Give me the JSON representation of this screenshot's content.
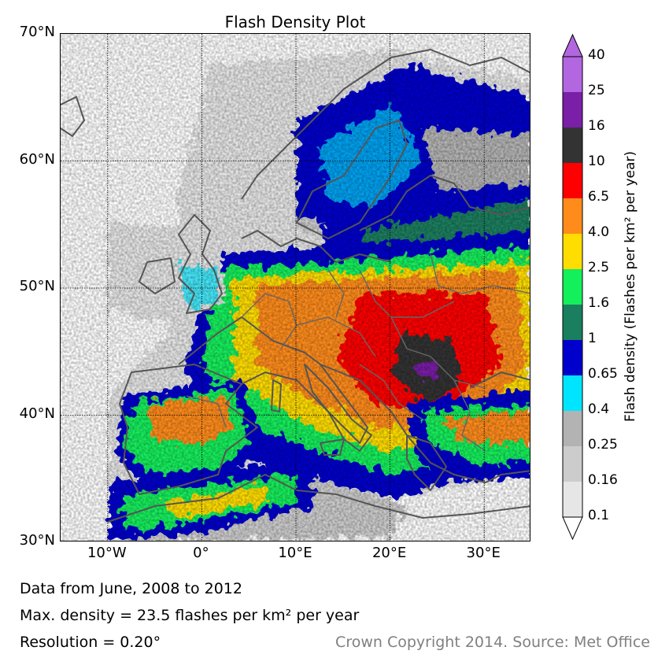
{
  "title": "Flash Density Plot",
  "axes": {
    "lat_labels": [
      "70°N",
      "60°N",
      "50°N",
      "40°N",
      "30°N"
    ],
    "lon_labels": [
      "10°W",
      "0°",
      "10°E",
      "20°E",
      "30°E"
    ],
    "lat_values": [
      70,
      60,
      50,
      40,
      30
    ],
    "lon_values": [
      -10,
      0,
      10,
      20,
      30
    ],
    "extent": {
      "lon": [
        -15,
        35
      ],
      "lat": [
        30,
        70
      ]
    },
    "gridlines": true
  },
  "colorbar": {
    "title": "Flash density (Flashes per km² per year)",
    "levels": [
      "40",
      "25",
      "16",
      "10",
      "6.5",
      "4.0",
      "2.5",
      "1.6",
      "1",
      "0.65",
      "0.4",
      "0.25",
      "0.16",
      "0.1"
    ],
    "colors": [
      "#b266e0",
      "#7a1fa8",
      "#333333",
      "#ff0000",
      "#ff8c1a",
      "#ffdd00",
      "#14ef5c",
      "#1a7f5e",
      "#0000cc",
      "#00e5ff",
      "#b3b3b3",
      "#cccccc",
      "#e6e6e6"
    ],
    "extend_max_color": "#b266e0",
    "extend_min_color": "#ffffff"
  },
  "footer": {
    "line1": "Data from June, 2008 to 2012",
    "line2": "Max. density = 23.5 flashes per km² per year",
    "line3": "Resolution = 0.20°",
    "copyright": "Crown Copyright 2014. Source: Met Office"
  }
}
